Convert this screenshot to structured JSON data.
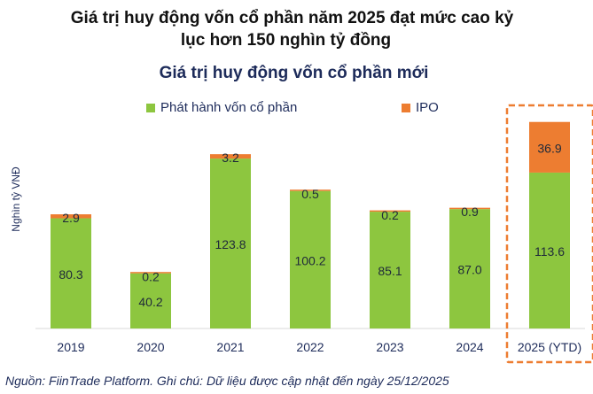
{
  "headline": {
    "line1": "Giá trị huy động vốn cổ phần năm 2025 đạt mức cao kỷ",
    "line2": "lục hơn 150 nghìn tỷ đồng"
  },
  "source_note": "Nguồn: FiinTrade Platform. Ghi chú: Dữ liệu được cập nhật đến ngày 25/12/2025",
  "colors": {
    "issuance": "#8dc63f",
    "ipo": "#ed7d31",
    "text": "#1d2b5a",
    "highlight_box": "#ed7d31"
  },
  "chart_data": {
    "type": "bar",
    "stacked": true,
    "title": "Giá trị huy động vốn cổ phần mới",
    "xlabel": "",
    "ylabel": "Nghìn tỷ VNĐ",
    "ylim": [
      0,
      155
    ],
    "grid": false,
    "legend_position": "top",
    "categories": [
      "2019",
      "2020",
      "2021",
      "2022",
      "2023",
      "2024",
      "2025 (YTD)"
    ],
    "series": [
      {
        "name": "Phát hành vốn cổ phần",
        "values": [
          80.3,
          40.2,
          123.8,
          100.2,
          85.1,
          87.0,
          113.6
        ],
        "labels": [
          "80.3",
          "40.2",
          "123.8",
          "100.2",
          "85.1",
          "87.0",
          "113.6"
        ]
      },
      {
        "name": "IPO",
        "values": [
          2.9,
          0.2,
          3.2,
          0.5,
          0.2,
          0.9,
          36.9
        ],
        "labels": [
          "2.9",
          "0.2",
          "3.2",
          "0.5",
          "0.2",
          "0.9",
          "36.9"
        ]
      }
    ],
    "highlighted_category": "2025 (YTD)"
  }
}
